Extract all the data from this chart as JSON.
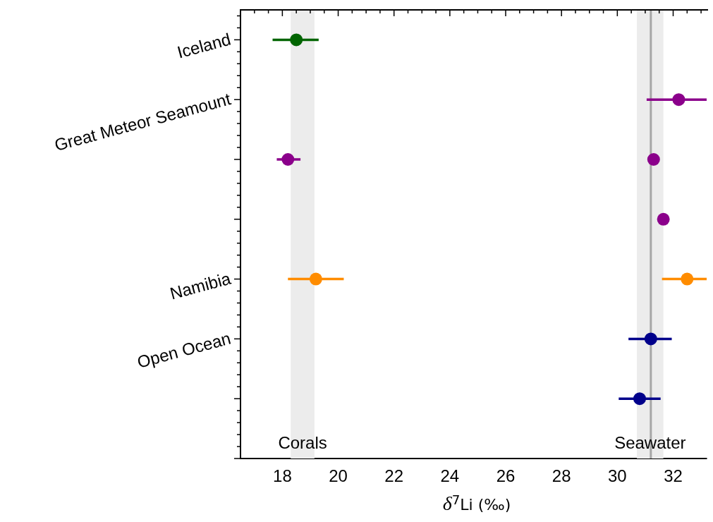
{
  "chart_data": {
    "type": "scatter",
    "orientation": "horizontal",
    "xlabel": "δ$^{7}$Li (‰)",
    "categories": [
      "Iceland",
      "Great Meteor Seamount",
      null,
      null,
      "Namibia",
      "Open Ocean",
      null
    ],
    "series": [
      {
        "values": [
          18.5,
          null,
          18.2,
          null,
          19.2,
          null,
          null
        ],
        "colors": [
          "#006400",
          null,
          "#8b008b",
          null,
          "#ff8c00",
          null,
          null
        ],
        "errors": [
          [
            17.65,
            19.3
          ],
          null,
          [
            17.8,
            18.65
          ],
          null,
          [
            18.2,
            20.2
          ],
          null,
          null
        ]
      },
      {
        "values": [
          null,
          32.2,
          31.3,
          31.65,
          32.5,
          31.2,
          30.8
        ],
        "colors": [
          null,
          "#8b008b",
          "#8b008b",
          "#8b008b",
          "#ff8c00",
          "#00008b",
          "#00008b"
        ],
        "errors": [
          null,
          [
            31.05,
            33.2
          ],
          null,
          null,
          [
            31.6,
            33.2
          ],
          [
            30.4,
            31.95
          ],
          [
            30.05,
            31.55
          ]
        ]
      }
    ],
    "xlim": [
      16.5,
      33.2
    ],
    "xticks": [
      {
        "value": 17,
        "label": null
      },
      {
        "value": 17.5,
        "label": null
      },
      18,
      {
        "value": 18.5,
        "label": null
      },
      {
        "value": 19,
        "label": null
      },
      {
        "value": 19.5,
        "label": null
      },
      20,
      {
        "value": 20.5,
        "label": null
      },
      {
        "value": 21,
        "label": null
      },
      {
        "value": 21.5,
        "label": null
      },
      22,
      {
        "value": 22.5,
        "label": null
      },
      {
        "value": 23,
        "label": null
      },
      {
        "value": 23.5,
        "label": null
      },
      24,
      {
        "value": 24.5,
        "label": null
      },
      {
        "value": 25,
        "label": null
      },
      {
        "value": 25.5,
        "label": null
      },
      26,
      {
        "value": 26.5,
        "label": null
      },
      {
        "value": 27,
        "label": null
      },
      {
        "value": 27.5,
        "label": null
      },
      28,
      {
        "value": 28.5,
        "label": null
      },
      {
        "value": 29,
        "label": null
      },
      {
        "value": 29.5,
        "label": null
      },
      30,
      {
        "value": 30.5,
        "label": null
      },
      {
        "value": 31,
        "label": null
      },
      {
        "value": 31.5,
        "label": null
      },
      32,
      {
        "value": 32.5,
        "label": null
      },
      {
        "value": 33,
        "label": null
      }
    ],
    "bands": [
      {
        "axis": "x",
        "from": 18.3,
        "to": 19.15,
        "label": "Corals",
        "color": "#ececec"
      },
      {
        "axis": "x",
        "from": 30.7,
        "to": 31.65,
        "label": "Seawater",
        "color": "#ececec"
      }
    ],
    "ref_lines": [
      {
        "axis": "x",
        "value": 31.2,
        "color": "#a6a6a6"
      }
    ],
    "marker": "circle",
    "grid": false,
    "legend": false
  }
}
